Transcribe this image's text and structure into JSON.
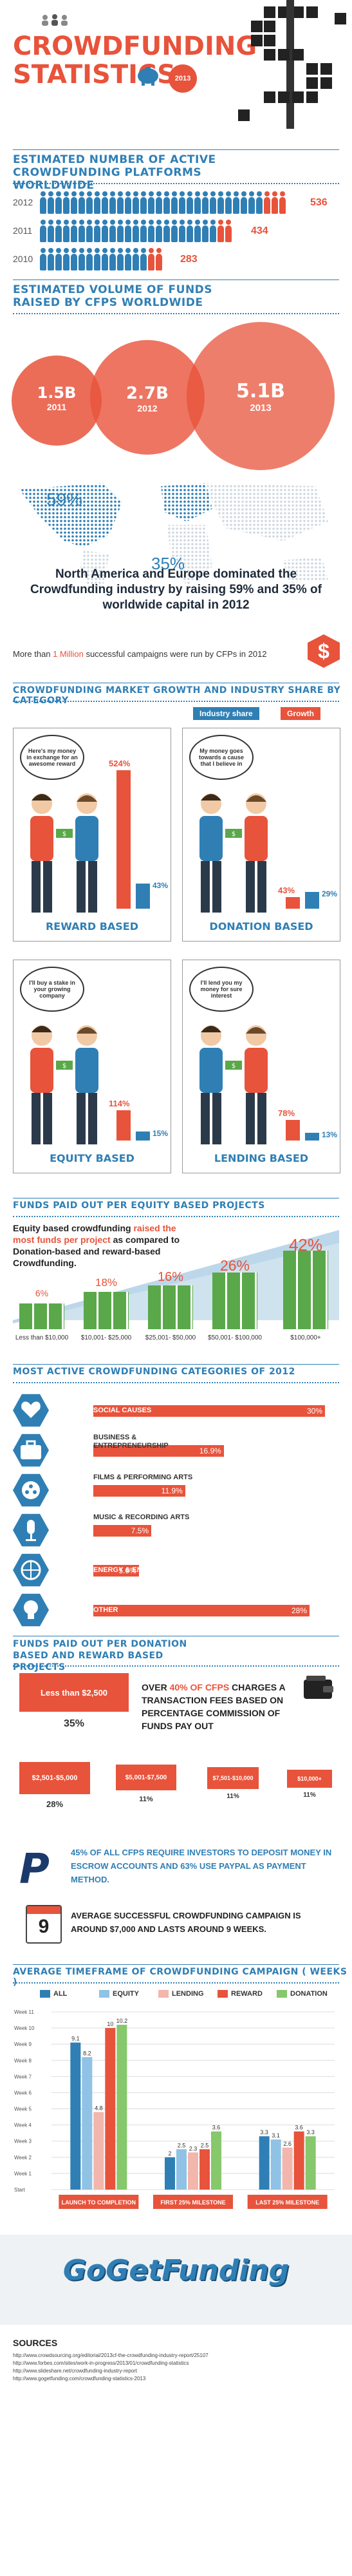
{
  "header": {
    "title_line1": "Crowdfunding",
    "title_line2": "Statistics",
    "year_badge": "2013"
  },
  "cfp_count": {
    "heading": "Estimated number of active crowdfunding platforms worldwide",
    "rows": [
      {
        "year": "2012",
        "value": "536"
      },
      {
        "year": "2011",
        "value": "434"
      },
      {
        "year": "2010",
        "value": "283"
      }
    ]
  },
  "funds_volume": {
    "heading": "Estimated volume of funds raised by CFPs worldwide",
    "bubbles": [
      {
        "amount": "1.5B",
        "year": "2011"
      },
      {
        "amount": "2.7B",
        "year": "2012"
      },
      {
        "amount": "5.1B",
        "year": "2013"
      }
    ]
  },
  "map": {
    "pct_na": "59%",
    "pct_eu": "35%",
    "statement": "North America and Europe dominated the Crowdfunding industry by raising 59% and 35% of worldwide capital in 2012",
    "campaigns_prefix": "More than ",
    "campaigns_highlight": "1 Million",
    "campaigns_suffix": " successful campaigns were run by CFPs in 2012"
  },
  "market": {
    "heading": "Crowdfunding market growth and industry share by category",
    "legend_share": "Industry share",
    "legend_growth": "Growth",
    "panels": [
      {
        "caption": "Reward based",
        "speech": "Here's my money in exchange for an awesome reward",
        "growth_label": "524%",
        "share_label": "43%",
        "growth": 524,
        "share": 43
      },
      {
        "caption": "Donation based",
        "speech": "My money goes towards a cause that I believe in",
        "growth_label": "43%",
        "share_label": "29%",
        "growth": 43,
        "share": 29
      },
      {
        "caption": "Equity based",
        "speech": "I'll buy a stake in your growing company",
        "growth_label": "114%",
        "share_label": "15%",
        "growth": 114,
        "share": 15
      },
      {
        "caption": "Lending based",
        "speech": "I'll lend you my money for sure interest",
        "growth_label": "78%",
        "share_label": "13%",
        "growth": 78,
        "share": 13
      }
    ]
  },
  "equity_projects": {
    "heading": "Funds paid out per equity based projects",
    "text_a": "Equity based crowdfunding ",
    "text_highlight": "raised the most funds per project",
    "text_b": " as compared to Donation-based and reward-based Crowdfunding.",
    "steps": [
      {
        "pct": "6%",
        "range": "Less than $10,000"
      },
      {
        "pct": "18%",
        "range": "$10,001- $25,000"
      },
      {
        "pct": "16%",
        "range": "$25,001- $50,000"
      },
      {
        "pct": "26%",
        "range": "$50,001- $100,000"
      },
      {
        "pct": "42%",
        "range": "$100,000+"
      }
    ]
  },
  "categories": {
    "heading": "Most active crowdfunding categories of 2012",
    "items": [
      {
        "label": "Social causes",
        "value": "30%",
        "pct": 30,
        "icon": "heart-hand-icon"
      },
      {
        "label": "Business & Entrepreneurship",
        "value": "16.9%",
        "pct": 16.9,
        "icon": "briefcase-icon"
      },
      {
        "label": "Films & Performing Arts",
        "value": "11.9%",
        "pct": 11.9,
        "icon": "film-reel-icon"
      },
      {
        "label": "Music & Recording Arts",
        "value": "7.5%",
        "pct": 7.5,
        "icon": "microphone-icon"
      },
      {
        "label": "Energy & Environment",
        "value": "5.9%",
        "pct": 5.9,
        "icon": "globe-icon"
      },
      {
        "label": "Other",
        "value": "28%",
        "pct": 28,
        "icon": "bulb-icon"
      }
    ]
  },
  "donation_funds": {
    "heading": "Funds paid out per donation based and reward based projects",
    "boxes": [
      {
        "range": "Less than $2,500",
        "pct": "35%"
      },
      {
        "range": "$2,501-$5,000",
        "pct": "28%"
      },
      {
        "range": "$5,001-$7,500",
        "pct": "11%"
      },
      {
        "range": "$7,501-$10,000",
        "pct": "11%"
      },
      {
        "range": "$10,000+",
        "pct": "11%"
      }
    ],
    "fee_text_a": "Over ",
    "fee_text_highlight": "40% of CFPs",
    "fee_text_b": " charges a transaction fees based on percentage commission of funds pay out",
    "paypal_text": "45% of all CFPs require investors to deposit money in escrow accounts and 63% use PayPal as payment method.",
    "calendar_day": "9",
    "avg_text": "Average successful crowdfunding campaign is around $7,000 and lasts around 9 weeks."
  },
  "timeframe": {
    "heading": "Average timeframe of crowdfunding campaign",
    "heading_unit": "( Weeks )"
  },
  "chart_data": {
    "type": "bar",
    "title": "Average timeframe of crowdfunding campaign ( Weeks )",
    "categories": [
      "Launch to completion",
      "First 25% milestone",
      "Last 25% milestone"
    ],
    "series": [
      {
        "name": "All",
        "values": [
          9.1,
          2,
          3.3
        ]
      },
      {
        "name": "Equity",
        "values": [
          8.2,
          2.5,
          3.1
        ]
      },
      {
        "name": "Lending",
        "values": [
          4.8,
          2.3,
          2.6
        ]
      },
      {
        "name": "Reward",
        "values": [
          10,
          2.5,
          3.6
        ]
      },
      {
        "name": "Donation",
        "values": [
          10.2,
          3.6,
          3.3
        ]
      }
    ],
    "ytick_labels": [
      "Week 11",
      "Week 10",
      "Week 9",
      "Week 8",
      "Week 7",
      "Week 6",
      "Week 5",
      "Week 4",
      "Week 3",
      "Week 2",
      "Week 1",
      "Start"
    ],
    "ylim": [
      0,
      11
    ],
    "legend_position": "top",
    "colors": [
      "#2f7fb5",
      "#8fc2e5",
      "#f2b6ad",
      "#e8533b",
      "#86c86b"
    ]
  },
  "footer": {
    "brand": "GoGetFunding",
    "sources_label": "Sources",
    "sources": [
      "http://www.crowdsourcing.org/editorial/2013cf-the-crowdfunding-industry-report/25107",
      "http://www.forbes.com/sites/work-in-progress/2013/01/crowdfunding-statistics",
      "http://www.slideshare.net/crowdfunding-industry-report",
      "http://www.gogetfunding.com/crowdfunding-statistics-2013"
    ]
  },
  "colors": {
    "primary_blue": "#2f7fb5",
    "accent_orange": "#e8533b",
    "green": "#86c86b"
  }
}
